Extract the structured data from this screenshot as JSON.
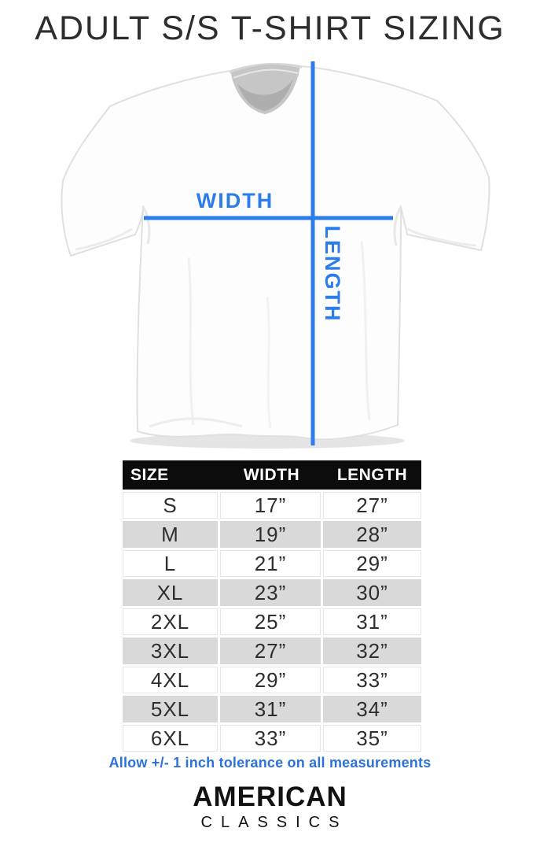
{
  "title": "ADULT S/S T-SHIRT SIZING",
  "diagram": {
    "width_label": "WIDTH",
    "length_label": "LENGTH",
    "line_color": "#2b7de9",
    "label_color": "#2b7de9"
  },
  "size_table": {
    "columns": [
      "SIZE",
      "WIDTH",
      "LENGTH"
    ],
    "rows": [
      [
        "S",
        "17”",
        "27”"
      ],
      [
        "M",
        "19”",
        "28”"
      ],
      [
        "L",
        "21”",
        "29”"
      ],
      [
        "XL",
        "23”",
        "30”"
      ],
      [
        "2XL",
        "25”",
        "31”"
      ],
      [
        "3XL",
        "27”",
        "32”"
      ],
      [
        "4XL",
        "29”",
        "33”"
      ],
      [
        "5XL",
        "31”",
        "34”"
      ],
      [
        "6XL",
        "33”",
        "35”"
      ]
    ],
    "header_bg": "#0c0c0c",
    "header_text_color": "#ffffff",
    "stripe_color": "#d9d9d9"
  },
  "note": {
    "text": "Allow +/- 1 inch tolerance on all measurements",
    "color": "#2c72dc"
  },
  "brand": {
    "line1": "AMERICAN",
    "line2": "CLASSICS"
  },
  "chart_data": {
    "type": "table",
    "title": "ADULT S/S T-SHIRT SIZING",
    "columns": [
      "SIZE",
      "WIDTH",
      "LENGTH"
    ],
    "rows": [
      [
        "S",
        "17”",
        "27”"
      ],
      [
        "M",
        "19”",
        "28”"
      ],
      [
        "L",
        "21”",
        "29”"
      ],
      [
        "XL",
        "23”",
        "30”"
      ],
      [
        "2XL",
        "25”",
        "31”"
      ],
      [
        "3XL",
        "27”",
        "32”"
      ],
      [
        "4XL",
        "29”",
        "33”"
      ],
      [
        "5XL",
        "31”",
        "34”"
      ],
      [
        "6XL",
        "33”",
        "35”"
      ]
    ],
    "width_values_in": [
      17,
      19,
      21,
      23,
      25,
      27,
      29,
      31,
      33
    ],
    "length_values_in": [
      27,
      28,
      29,
      30,
      31,
      32,
      33,
      34,
      35
    ],
    "note": "Allow +/- 1 inch tolerance on all measurements"
  }
}
